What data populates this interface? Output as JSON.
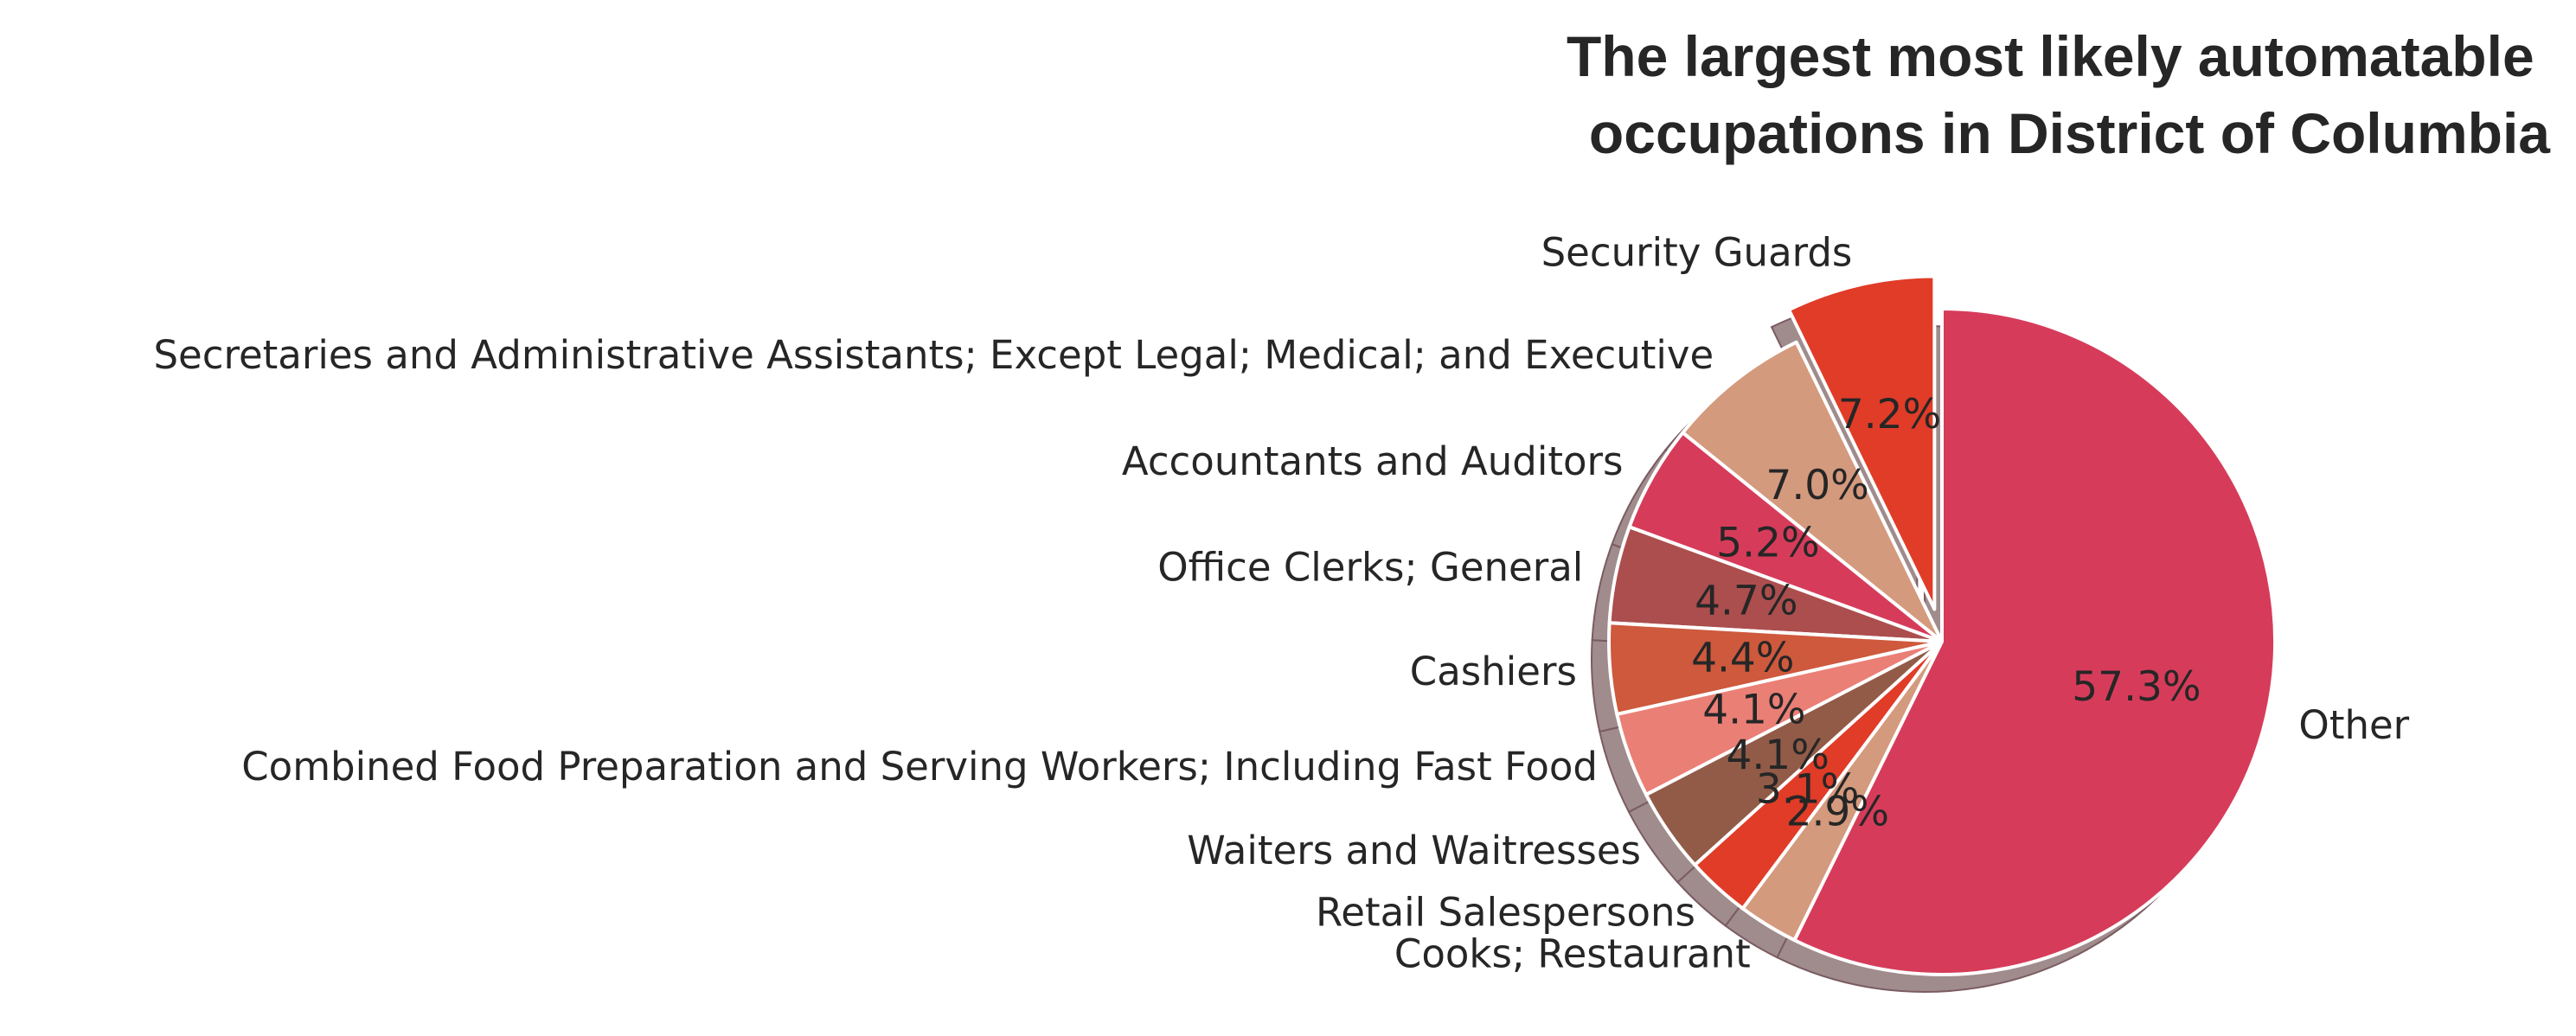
{
  "chart_data": {
    "type": "pie",
    "title": "The largest most likely automatable occupations in District of Columbia",
    "title_lines": [
      "The largest most likely automatable",
      "occupations in District of Columbia"
    ],
    "categories": [
      "Security Guards",
      "Secretaries and Administrative Assistants; Except Legal; Medical; and Executive",
      "Accountants and Auditors",
      "Office Clerks; General",
      "Cashiers",
      "Combined Food Preparation and Serving Workers; Including Fast Food",
      "Waiters and Waitresses",
      "Retail Salespersons",
      "Cooks; Restaurant",
      "Other"
    ],
    "values": [
      7.2,
      7.0,
      5.2,
      4.7,
      4.4,
      4.1,
      4.1,
      3.1,
      2.9,
      57.3
    ],
    "value_labels": [
      "7.2%",
      "7.0%",
      "5.2%",
      "4.7%",
      "4.4%",
      "4.1%",
      "4.1%",
      "3.1%",
      "2.9%",
      "57.3%"
    ],
    "colors": [
      "#e03c28",
      "#d49a7d",
      "#d63c5a",
      "#ac4e4e",
      "#ce593d",
      "#ea7f76",
      "#925b48",
      "#e03c28",
      "#d49a7d",
      "#d63c5a"
    ],
    "exploded": [
      "Security Guards"
    ],
    "start": "top, counterclockwise",
    "shadow": true,
    "legend": "none"
  }
}
